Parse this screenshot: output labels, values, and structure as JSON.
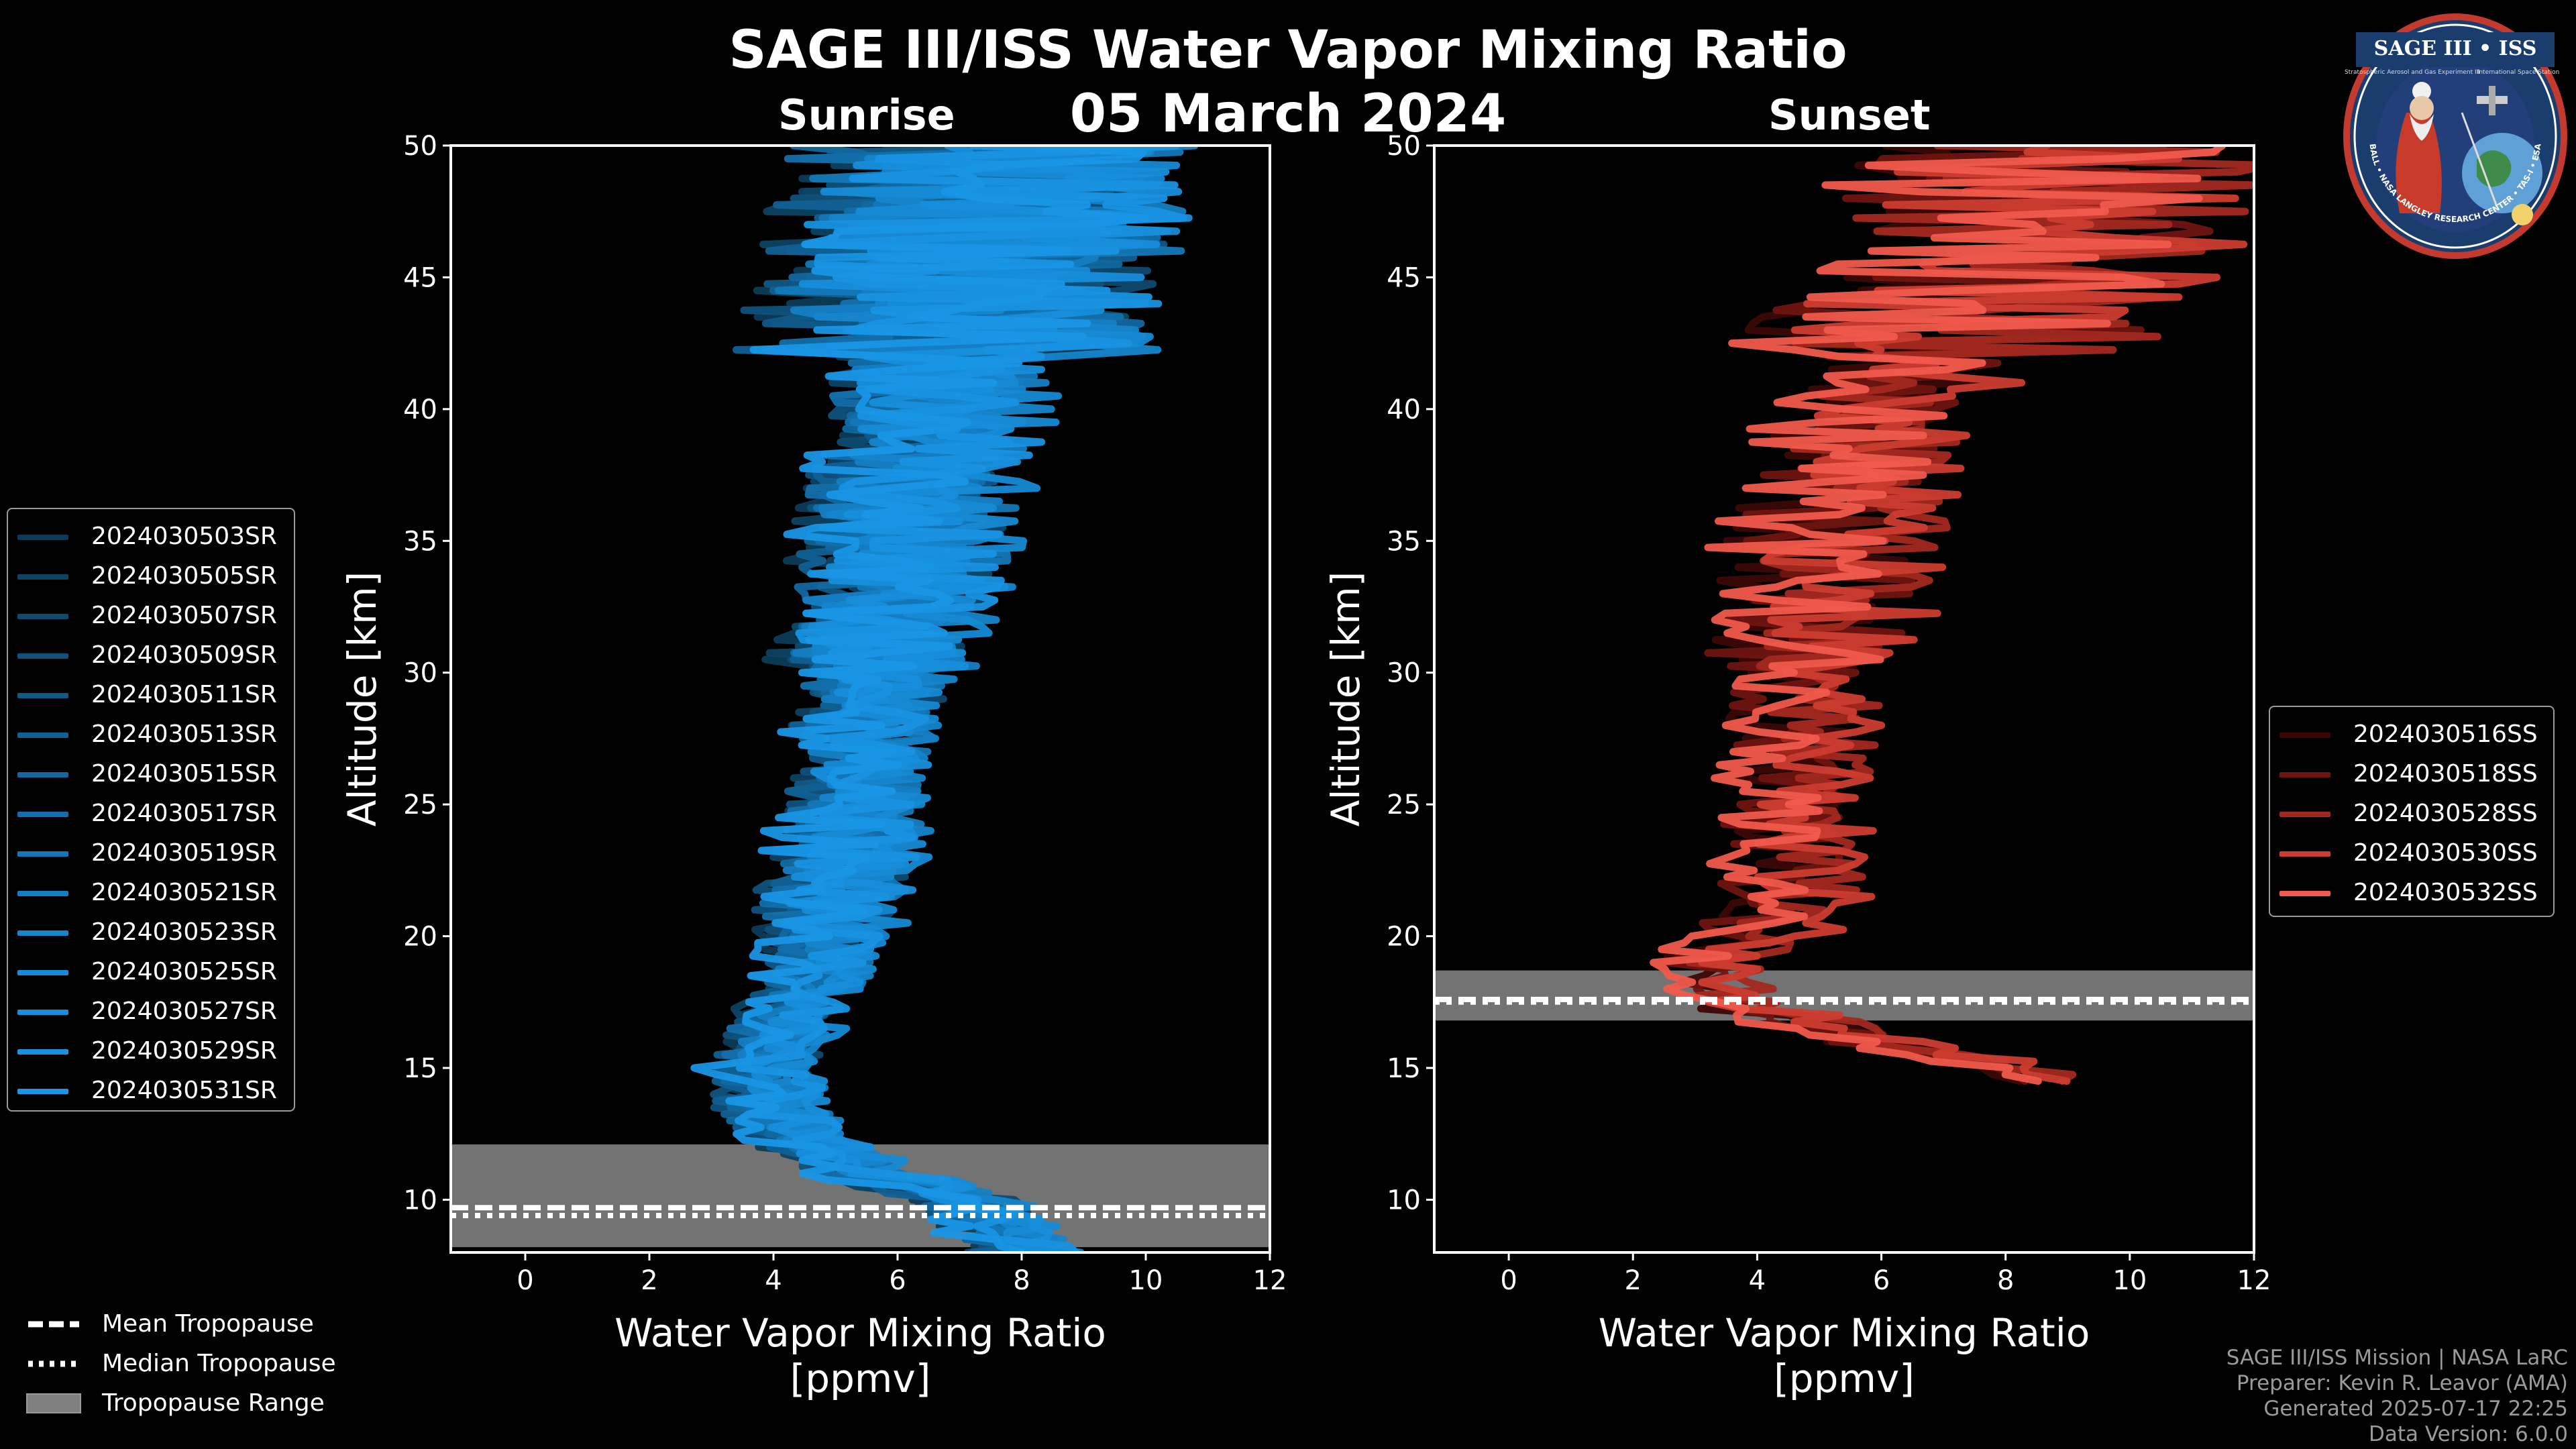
{
  "header": {
    "title": "SAGE III/ISS Water Vapor Mixing Ratio",
    "date": "05 March 2024",
    "sunrise_label": "Sunrise",
    "sunset_label": "Sunset"
  },
  "logo": {
    "name": "SAGE III • ISS",
    "subtitle_left": "Stratospheric Aerosol and Gas Experiment III",
    "subtitle_right": "International Space Station",
    "ring_text": "BALL • NASA LANGLEY RESEARCH CENTER • TAS-I • ESA"
  },
  "credits": {
    "line1": "SAGE III/ISS Mission | NASA LaRC",
    "line2": "Preparer: Kevin R. Leavor (AMA)",
    "line3": "Generated 2025-07-17 22:25",
    "line4": "Data Version: 6.0.0"
  },
  "reference_legend": {
    "mean": "Mean Tropopause",
    "median": "Median Tropopause",
    "range": "Tropopause Range"
  },
  "colors": {
    "background": "#000000",
    "sunrise_series": [
      "#0c3b57",
      "#0d4263",
      "#0e4a6f",
      "#0f517b",
      "#105987",
      "#116093",
      "#12689f",
      "#136fab",
      "#1477b7",
      "#157ec3",
      "#1585cc",
      "#168ad4",
      "#178edb",
      "#1892e1",
      "#1996e6"
    ],
    "sunset_series": [
      "#3a0805",
      "#6e1410",
      "#a2281f",
      "#cc3c30",
      "#f05a4c"
    ],
    "tropopause_range": "#808080"
  },
  "chart_data": [
    {
      "type": "line",
      "title": "Sunrise",
      "xlabel": "Water Vapor Mixing Ratio\n[ppmv]",
      "xlabel_lines": [
        "Water Vapor Mixing Ratio",
        "[ppmv]"
      ],
      "ylabel": "Altitude [km]",
      "xlim": [
        -1.2,
        12
      ],
      "ylim": [
        8,
        50
      ],
      "xticks": [
        0,
        2,
        4,
        6,
        8,
        10,
        12
      ],
      "yticks": [
        10,
        15,
        20,
        25,
        30,
        35,
        40,
        45,
        50
      ],
      "series_names": [
        "2024030503SR",
        "2024030505SR",
        "2024030507SR",
        "2024030509SR",
        "2024030511SR",
        "2024030513SR",
        "2024030515SR",
        "2024030517SR",
        "2024030519SR",
        "2024030521SR",
        "2024030523SR",
        "2024030525SR",
        "2024030527SR",
        "2024030529SR",
        "2024030531SR"
      ],
      "typical_profile": {
        "altitude_km": [
          8,
          10,
          11,
          12,
          13,
          15,
          17,
          20,
          25,
          30,
          35,
          40,
          45,
          50
        ],
        "mixing_ratio_ppmv": [
          8.0,
          7.0,
          5.5,
          4.6,
          4.0,
          3.8,
          4.2,
          4.8,
          5.3,
          5.6,
          6.0,
          6.6,
          7.0,
          7.5
        ]
      },
      "tropopause": {
        "mean_km": 9.7,
        "median_km": 9.4,
        "range_km": [
          8.2,
          12.1
        ]
      }
    },
    {
      "type": "line",
      "title": "Sunset",
      "xlabel": "Water Vapor Mixing Ratio\n[ppmv]",
      "xlabel_lines": [
        "Water Vapor Mixing Ratio",
        "[ppmv]"
      ],
      "ylabel": "Altitude [km]",
      "xlim": [
        -1.2,
        12
      ],
      "ylim": [
        8,
        50
      ],
      "xticks": [
        0,
        2,
        4,
        6,
        8,
        10,
        12
      ],
      "yticks": [
        10,
        15,
        20,
        25,
        30,
        35,
        40,
        45,
        50
      ],
      "series_names": [
        "2024030516SS",
        "2024030518SS",
        "2024030528SS",
        "2024030530SS",
        "2024030532SS"
      ],
      "typical_profile": {
        "altitude_km": [
          14.5,
          16,
          17.5,
          19,
          21,
          25,
          30,
          35,
          40,
          45,
          50
        ],
        "mixing_ratio_ppmv": [
          9.0,
          6.0,
          3.5,
          3.2,
          4.5,
          4.6,
          4.8,
          5.2,
          6.0,
          8.0,
          9.0
        ]
      },
      "tropopause": {
        "mean_km": 17.6,
        "median_km": 17.5,
        "range_km": [
          16.8,
          18.7
        ]
      }
    }
  ]
}
